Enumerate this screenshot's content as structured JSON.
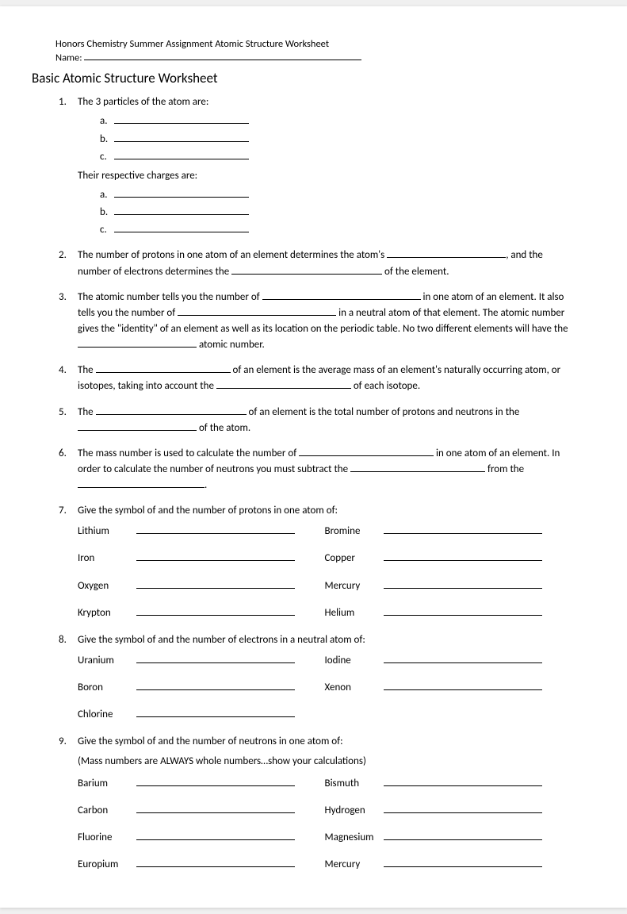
{
  "header": {
    "title": "Honors Chemistry Summer Assignment Atomic Structure Worksheet",
    "name_label": "Name:"
  },
  "main_title": "Basic Atomic Structure Worksheet",
  "q1": {
    "intro": "The 3 particles of the atom are:",
    "a": "a.",
    "b": "b.",
    "c": "c.",
    "charges": "Their respective charges are:"
  },
  "q2": {
    "t1": "The number of protons in one atom of an element determines the atom's ",
    "t2": ", and the number of electrons determines the ",
    "t3": " of the element."
  },
  "q3": {
    "t1": "The atomic number tells you the number of ",
    "t2": " in one atom of an element.  It also tells you the number of ",
    "t3": " in a neutral atom of that element.  The atomic number gives the \"identity\" of an element as well as its location on the periodic table.  No two different elements will have the ",
    "t4": " atomic number."
  },
  "q4": {
    "t1": "The ",
    "t2": " of an element is the average mass of an element's naturally occurring atom, or isotopes, taking into account the ",
    "t3": " of each isotope."
  },
  "q5": {
    "t1": "The ",
    "t2": " of an element is the total number of protons and neutrons in the ",
    "t3": " of the atom."
  },
  "q6": {
    "t1": "The mass number is used to calculate the number of ",
    "t2": " in one atom of an element.  In order to calculate the number of neutrons you must subtract the ",
    "t3": " from the ",
    "t4": "."
  },
  "q7": {
    "prompt": "Give the symbol of and the number of protons in one atom of:",
    "left": [
      "Lithium",
      "Iron",
      "Oxygen",
      "Krypton"
    ],
    "right": [
      "Bromine",
      "Copper",
      "Mercury",
      "Helium"
    ]
  },
  "q8": {
    "prompt": "Give the symbol of and the number of electrons in a neutral atom of:",
    "left": [
      "Uranium",
      "Boron",
      "Chlorine"
    ],
    "right": [
      "Iodine",
      "Xenon",
      ""
    ]
  },
  "q9": {
    "prompt": "Give the symbol of and the number of neutrons in one atom of:",
    "note": "(Mass numbers are ALWAYS whole numbers…show your calculations)",
    "left": [
      "Barium",
      "Carbon",
      "Fluorine",
      "Europium"
    ],
    "right": [
      "Bismuth",
      "Hydrogen",
      "Magnesium",
      "Mercury"
    ]
  },
  "blank_widths": {
    "name": 350,
    "sub": 170,
    "q2a": 150,
    "q2b": 190,
    "q3a": 200,
    "q3b": 200,
    "q3c": 150,
    "q4a": 170,
    "q4b": 170,
    "q5a": 190,
    "q5b": 150,
    "q6a": 170,
    "q6b": 170,
    "q6c": 160
  }
}
